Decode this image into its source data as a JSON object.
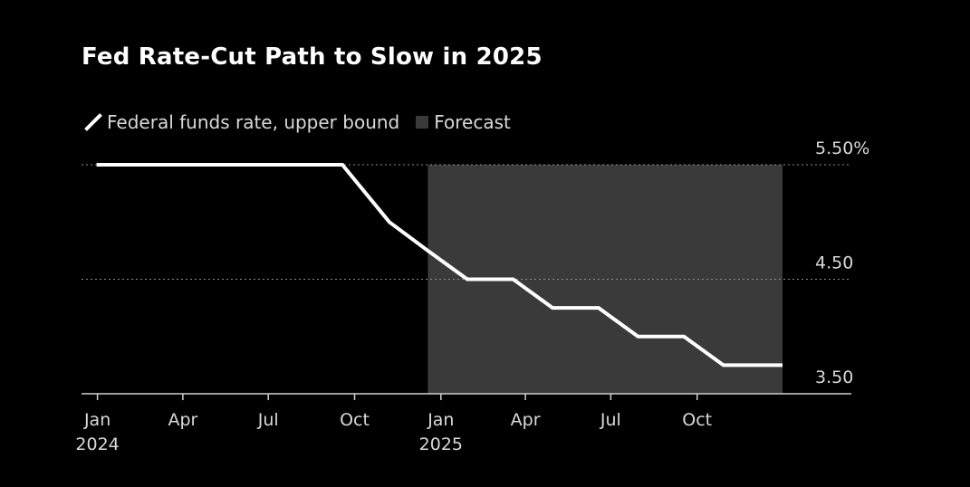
{
  "title": "Fed Rate-Cut Path to Slow in 2025",
  "legend": {
    "line_label": "Federal funds rate, upper bound",
    "forecast_label": "Forecast"
  },
  "colors": {
    "background": "#000000",
    "line": "#ffffff",
    "forecast_shade": "#3a3a3a",
    "grid": "#8c8c8c",
    "text": "#d9d9d9"
  },
  "chart_data": {
    "type": "line",
    "title": "Fed Rate-Cut Path to Slow in 2025",
    "xlabel": "",
    "ylabel": "",
    "x_range": [
      "2023-12-15",
      "2025-12-31"
    ],
    "ylim": [
      3.5,
      5.5
    ],
    "y_ticks": [
      {
        "value": 5.5,
        "label": "5.50%"
      },
      {
        "value": 4.5,
        "label": "4.50"
      },
      {
        "value": 3.5,
        "label": "3.50"
      }
    ],
    "x_ticks": [
      {
        "date": "2024-01-01",
        "label": "Jan",
        "sublabel": "2024"
      },
      {
        "date": "2024-04-01",
        "label": "Apr",
        "sublabel": ""
      },
      {
        "date": "2024-07-01",
        "label": "Jul",
        "sublabel": ""
      },
      {
        "date": "2024-10-01",
        "label": "Oct",
        "sublabel": ""
      },
      {
        "date": "2025-01-01",
        "label": "Jan",
        "sublabel": "2025"
      },
      {
        "date": "2025-04-01",
        "label": "Apr",
        "sublabel": ""
      },
      {
        "date": "2025-07-01",
        "label": "Jul",
        "sublabel": ""
      },
      {
        "date": "2025-10-01",
        "label": "Oct",
        "sublabel": ""
      }
    ],
    "forecast_range": [
      "2024-12-18",
      "2025-12-31"
    ],
    "series": [
      {
        "name": "Federal funds rate, upper bound",
        "points": [
          {
            "x": "2023-12-31",
            "y": 5.5
          },
          {
            "x": "2024-09-18",
            "y": 5.5
          },
          {
            "x": "2024-11-07",
            "y": 5.0
          },
          {
            "x": "2024-12-18",
            "y": 4.75
          },
          {
            "x": "2025-01-29",
            "y": 4.5
          },
          {
            "x": "2025-03-19",
            "y": 4.5
          },
          {
            "x": "2025-04-30",
            "y": 4.25
          },
          {
            "x": "2025-06-18",
            "y": 4.25
          },
          {
            "x": "2025-07-30",
            "y": 4.0
          },
          {
            "x": "2025-09-17",
            "y": 4.0
          },
          {
            "x": "2025-10-29",
            "y": 3.75
          },
          {
            "x": "2025-12-31",
            "y": 3.75
          }
        ]
      }
    ],
    "grid": true,
    "legend_position": "top-left"
  }
}
